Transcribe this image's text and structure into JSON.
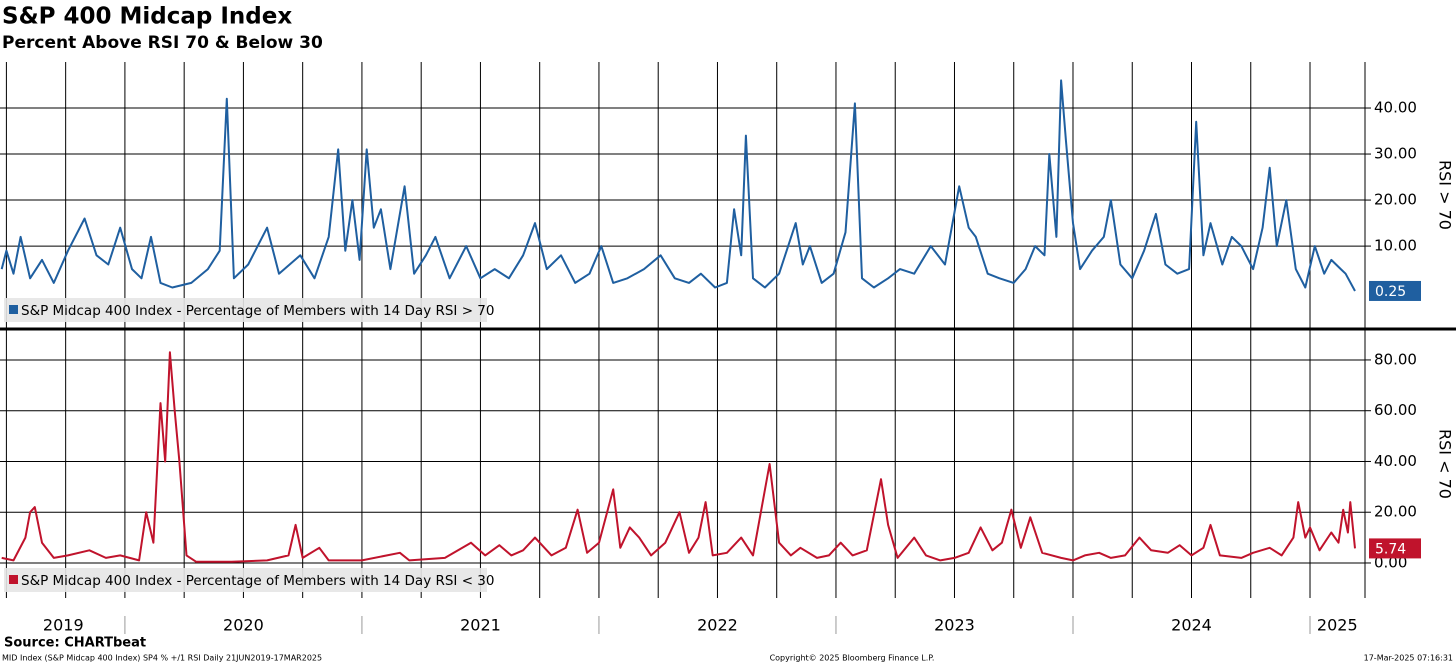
{
  "title": "S&P 400 Midcap Index",
  "subtitle": "Percent Above RSI 70 & Below 30",
  "source": "Source: CHARTbeat",
  "footer": {
    "left": "MID Index (S&P Midcap 400 Index) SP4 % +/1 RSI  Daily 21JUN2019-17MAR2025",
    "center": "Copyright© 2025 Bloomberg Finance L.P.",
    "right": "17-Mar-2025 07:16:31"
  },
  "chart_data": [
    {
      "type": "line",
      "ylabel": "RSI > 70",
      "xlim": [
        2019.473,
        2025.232
      ],
      "ylim": [
        -7.8,
        50
      ],
      "yticks": [
        {
          "value": 10,
          "label": "10.00"
        },
        {
          "value": 20,
          "label": "20.00"
        },
        {
          "value": 30,
          "label": "30.00"
        },
        {
          "value": 40,
          "label": "40.00"
        }
      ],
      "xgrid": [
        2019.5,
        2019.75,
        2020,
        2020.25,
        2020.5,
        2020.75,
        2021,
        2021.25,
        2021.5,
        2021.75,
        2022,
        2022.25,
        2022.5,
        2022.75,
        2023,
        2023.25,
        2023.5,
        2023.75,
        2024,
        2024.25,
        2024.5,
        2024.75,
        2025
      ],
      "series": [
        {
          "name": "S&P Midcap 400 Index - Percentage of Members with 14 Day RSI > 70",
          "color": "#1f5fa0",
          "end_label": "0.25",
          "x": [
            2019.48,
            2019.5,
            2019.53,
            2019.56,
            2019.6,
            2019.65,
            2019.7,
            2019.76,
            2019.83,
            2019.88,
            2019.93,
            2019.98,
            2020.03,
            2020.07,
            2020.11,
            2020.15,
            2020.2,
            2020.28,
            2020.35,
            2020.4,
            2020.43,
            2020.46,
            2020.52,
            2020.6,
            2020.65,
            2020.74,
            2020.8,
            2020.86,
            2020.9,
            2020.93,
            2020.96,
            2020.99,
            2021.02,
            2021.05,
            2021.08,
            2021.12,
            2021.18,
            2021.22,
            2021.27,
            2021.31,
            2021.37,
            2021.44,
            2021.5,
            2021.56,
            2021.62,
            2021.68,
            2021.73,
            2021.78,
            2021.84,
            2021.9,
            2021.96,
            2022.01,
            2022.06,
            2022.12,
            2022.19,
            2022.26,
            2022.32,
            2022.38,
            2022.43,
            2022.49,
            2022.54,
            2022.57,
            2022.6,
            2022.62,
            2022.65,
            2022.7,
            2022.76,
            2022.83,
            2022.86,
            2022.89,
            2022.94,
            2022.99,
            2023.04,
            2023.08,
            2023.11,
            2023.16,
            2023.22,
            2023.27,
            2023.33,
            2023.4,
            2023.46,
            2023.52,
            2023.56,
            2023.59,
            2023.64,
            2023.69,
            2023.75,
            2023.8,
            2023.84,
            2023.88,
            2023.9,
            2023.93,
            2023.95,
            2023.97,
            2024.0,
            2024.03,
            2024.08,
            2024.13,
            2024.16,
            2024.2,
            2024.25,
            2024.3,
            2024.35,
            2024.39,
            2024.44,
            2024.49,
            2024.52,
            2024.55,
            2024.58,
            2024.63,
            2024.67,
            2024.71,
            2024.76,
            2024.8,
            2024.83,
            2024.86,
            2024.9,
            2024.94,
            2024.98,
            2025.02,
            2025.06,
            2025.09,
            2025.13,
            2025.15,
            2025.19
          ],
          "values": [
            5,
            9,
            4,
            12,
            3,
            7,
            2,
            9,
            16,
            8,
            6,
            14,
            5,
            3,
            12,
            2,
            1,
            2,
            5,
            9,
            42,
            3,
            6,
            14,
            4,
            8,
            3,
            12,
            31,
            9,
            20,
            7,
            31,
            14,
            18,
            5,
            23,
            4,
            8,
            12,
            3,
            10,
            3,
            5,
            3,
            8,
            15,
            5,
            8,
            2,
            4,
            10,
            2,
            3,
            5,
            8,
            3,
            2,
            4,
            1,
            2,
            18,
            8,
            34,
            3,
            1,
            4,
            15,
            6,
            10,
            2,
            4,
            13,
            41,
            3,
            1,
            3,
            5,
            4,
            10,
            6,
            23,
            14,
            12,
            4,
            3,
            2,
            5,
            10,
            8,
            30,
            12,
            46,
            33,
            15,
            5,
            9,
            12,
            20,
            6,
            3,
            9,
            17,
            6,
            4,
            5,
            37,
            8,
            15,
            6,
            12,
            10,
            5,
            14,
            27,
            10,
            20,
            5,
            1,
            10,
            4,
            7,
            5,
            4,
            0.25
          ]
        }
      ]
    },
    {
      "type": "line",
      "ylabel": "RSI < 70",
      "xlim": [
        2019.473,
        2025.232
      ],
      "ylim": [
        -13.8,
        91.8
      ],
      "yticks": [
        {
          "value": 0,
          "label": "0.00"
        },
        {
          "value": 20,
          "label": "20.00"
        },
        {
          "value": 40,
          "label": "40.00"
        },
        {
          "value": 60,
          "label": "60.00"
        },
        {
          "value": 80,
          "label": "80.00"
        }
      ],
      "xgrid": [
        2019.5,
        2019.75,
        2020,
        2020.25,
        2020.5,
        2020.75,
        2021,
        2021.25,
        2021.5,
        2021.75,
        2022,
        2022.25,
        2022.5,
        2022.75,
        2023,
        2023.25,
        2023.5,
        2023.75,
        2024,
        2024.25,
        2024.5,
        2024.75,
        2025
      ],
      "xticks": [
        {
          "value": 2019.74,
          "label": "2019"
        },
        {
          "value": 2020.5,
          "label": "2020"
        },
        {
          "value": 2021.5,
          "label": "2021"
        },
        {
          "value": 2022.5,
          "label": "2022"
        },
        {
          "value": 2023.5,
          "label": "2023"
        },
        {
          "value": 2024.5,
          "label": "2024"
        },
        {
          "value": 2025.115,
          "label": "2025"
        }
      ],
      "series": [
        {
          "name": "S&P Midcap 400 Index - Percentage of Members with 14 Day RSI < 30",
          "color": "#c0132c",
          "end_label": "5.74",
          "x": [
            2019.48,
            2019.53,
            2019.58,
            2019.6,
            2019.62,
            2019.65,
            2019.7,
            2019.76,
            2019.85,
            2019.92,
            2019.98,
            2020.02,
            2020.06,
            2020.09,
            2020.12,
            2020.15,
            2020.17,
            2020.19,
            2020.21,
            2020.23,
            2020.26,
            2020.3,
            2020.45,
            2020.6,
            2020.69,
            2020.72,
            2020.75,
            2020.82,
            2020.86,
            2021.0,
            2021.16,
            2021.2,
            2021.35,
            2021.46,
            2021.52,
            2021.58,
            2021.63,
            2021.68,
            2021.73,
            2021.8,
            2021.86,
            2021.91,
            2021.95,
            2022.0,
            2022.06,
            2022.09,
            2022.13,
            2022.17,
            2022.22,
            2022.28,
            2022.34,
            2022.38,
            2022.42,
            2022.45,
            2022.48,
            2022.54,
            2022.6,
            2022.65,
            2022.72,
            2022.76,
            2022.81,
            2022.85,
            2022.92,
            2022.97,
            2023.02,
            2023.07,
            2023.13,
            2023.19,
            2023.22,
            2023.26,
            2023.33,
            2023.38,
            2023.44,
            2023.5,
            2023.56,
            2023.61,
            2023.66,
            2023.7,
            2023.74,
            2023.78,
            2023.82,
            2023.87,
            2023.95,
            2024.0,
            2024.05,
            2024.11,
            2024.16,
            2024.22,
            2024.28,
            2024.33,
            2024.4,
            2024.45,
            2024.5,
            2024.55,
            2024.58,
            2024.62,
            2024.71,
            2024.76,
            2024.83,
            2024.88,
            2024.93,
            2024.95,
            2024.98,
            2025.0,
            2025.04,
            2025.09,
            2025.12,
            2025.14,
            2025.16,
            2025.17,
            2025.19
          ],
          "values": [
            2,
            1,
            10,
            20,
            22,
            8,
            2,
            3,
            5,
            2,
            3,
            2,
            1,
            20,
            8,
            63,
            40,
            83,
            60,
            40,
            3,
            0.5,
            0.5,
            1,
            3,
            15,
            2,
            6,
            1,
            1,
            4,
            1,
            2,
            8,
            3,
            7,
            3,
            5,
            10,
            3,
            6,
            21,
            4,
            8,
            29,
            6,
            14,
            10,
            3,
            8,
            20,
            4,
            10,
            24,
            3,
            4,
            10,
            3,
            39,
            8,
            3,
            6,
            2,
            3,
            8,
            3,
            5,
            33,
            15,
            2,
            10,
            3,
            1,
            2,
            4,
            14,
            5,
            8,
            21,
            6,
            18,
            4,
            2,
            1,
            3,
            4,
            2,
            3,
            10,
            5,
            4,
            7,
            3,
            6,
            15,
            3,
            2,
            4,
            6,
            3,
            10,
            24,
            10,
            14,
            5,
            12,
            8,
            21,
            12,
            24,
            5.74
          ]
        }
      ]
    }
  ]
}
